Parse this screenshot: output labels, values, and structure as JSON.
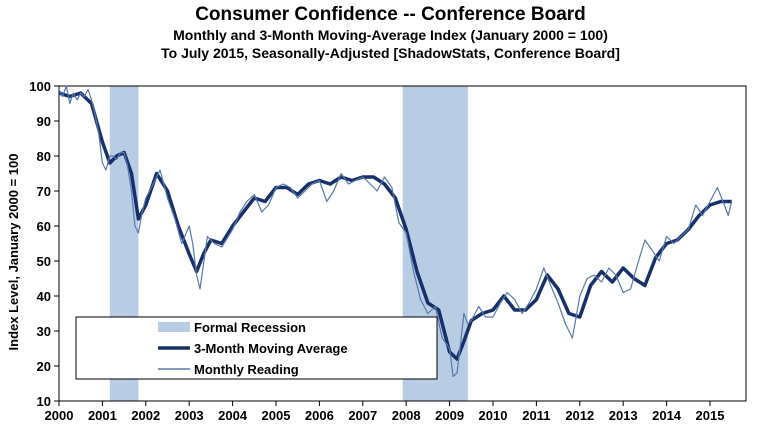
{
  "chart_data": {
    "type": "line",
    "title": "Consumer Confidence -- Conference Board",
    "subtitle1": "Monthly and 3-Month Moving-Average Index (January 2000 = 100)",
    "subtitle2": "To July 2015, Seasonally-Adjusted [ShadowStats, Conference Board]",
    "ylabel": "Index Level, January 2000 = 100",
    "xlabel": "",
    "ylim": [
      10,
      100
    ],
    "xlim": [
      2000.0,
      2015.83
    ],
    "yticks": [
      "10",
      "20",
      "30",
      "40",
      "50",
      "60",
      "70",
      "80",
      "90",
      "100"
    ],
    "xticks": [
      "2000",
      "2001",
      "2002",
      "2003",
      "2004",
      "2005",
      "2006",
      "2007",
      "2008",
      "2009",
      "2010",
      "2011",
      "2012",
      "2013",
      "2014",
      "2015"
    ],
    "grid": false,
    "legend_position": "bottom-left",
    "colors": {
      "recession": "#b8cce4",
      "moving_average": "#17306b",
      "monthly": "#5878a8"
    },
    "legend": [
      {
        "key": "recession",
        "label": "Formal Recession"
      },
      {
        "key": "moving_average",
        "label": "3-Month Moving Average"
      },
      {
        "key": "monthly",
        "label": "Monthly Reading"
      }
    ],
    "recessions": [
      {
        "start": 2001.17,
        "end": 2001.83
      },
      {
        "start": 2007.92,
        "end": 2009.42
      }
    ],
    "series": [
      {
        "name": "3-Month Moving Average",
        "x": [
          2000.0,
          2000.25,
          2000.5,
          2000.75,
          2001.0,
          2001.17,
          2001.33,
          2001.5,
          2001.67,
          2001.83,
          2002.0,
          2002.25,
          2002.5,
          2002.75,
          2003.0,
          2003.17,
          2003.33,
          2003.5,
          2003.75,
          2004.0,
          2004.25,
          2004.5,
          2004.75,
          2005.0,
          2005.25,
          2005.5,
          2005.75,
          2006.0,
          2006.25,
          2006.5,
          2006.75,
          2007.0,
          2007.25,
          2007.5,
          2007.75,
          2008.0,
          2008.25,
          2008.5,
          2008.75,
          2009.0,
          2009.17,
          2009.33,
          2009.5,
          2009.75,
          2010.0,
          2010.25,
          2010.5,
          2010.75,
          2011.0,
          2011.25,
          2011.5,
          2011.75,
          2012.0,
          2012.25,
          2012.5,
          2012.75,
          2013.0,
          2013.25,
          2013.5,
          2013.75,
          2014.0,
          2014.25,
          2014.5,
          2014.75,
          2015.0,
          2015.25,
          2015.5
        ],
        "values": [
          98,
          97,
          98,
          95,
          84,
          78,
          80,
          81,
          75,
          62,
          66,
          75,
          70,
          60,
          52,
          47,
          52,
          56,
          55,
          60,
          64,
          68,
          67,
          71,
          71,
          69,
          72,
          73,
          72,
          74,
          73,
          74,
          74,
          72,
          68,
          59,
          47,
          38,
          36,
          24,
          22,
          27,
          33,
          35,
          36,
          40,
          36,
          36,
          39,
          46,
          42,
          35,
          34,
          43,
          47,
          44,
          48,
          45,
          43,
          51,
          55,
          56,
          59,
          63,
          66,
          67,
          67
        ]
      },
      {
        "name": "Monthly Reading",
        "x": [
          2000.0,
          2000.08,
          2000.17,
          2000.25,
          2000.33,
          2000.42,
          2000.5,
          2000.58,
          2000.67,
          2000.75,
          2000.83,
          2000.92,
          2001.0,
          2001.08,
          2001.17,
          2001.25,
          2001.33,
          2001.42,
          2001.5,
          2001.58,
          2001.67,
          2001.75,
          2001.83,
          2001.92,
          2002.0,
          2002.17,
          2002.33,
          2002.5,
          2002.67,
          2002.83,
          2003.0,
          2003.08,
          2003.17,
          2003.25,
          2003.42,
          2003.58,
          2003.75,
          2004.0,
          2004.17,
          2004.33,
          2004.5,
          2004.67,
          2004.83,
          2005.0,
          2005.17,
          2005.33,
          2005.5,
          2005.67,
          2005.83,
          2006.0,
          2006.17,
          2006.33,
          2006.5,
          2006.67,
          2006.83,
          2007.0,
          2007.17,
          2007.33,
          2007.5,
          2007.67,
          2007.83,
          2008.0,
          2008.17,
          2008.33,
          2008.5,
          2008.67,
          2008.83,
          2009.0,
          2009.08,
          2009.17,
          2009.25,
          2009.33,
          2009.42,
          2009.5,
          2009.67,
          2009.83,
          2010.0,
          2010.17,
          2010.33,
          2010.5,
          2010.67,
          2010.83,
          2011.0,
          2011.17,
          2011.33,
          2011.5,
          2011.67,
          2011.83,
          2012.0,
          2012.17,
          2012.33,
          2012.5,
          2012.67,
          2012.83,
          2013.0,
          2013.17,
          2013.33,
          2013.5,
          2013.67,
          2013.83,
          2014.0,
          2014.17,
          2014.33,
          2014.5,
          2014.67,
          2014.83,
          2015.0,
          2015.17,
          2015.33,
          2015.42,
          2015.5
        ],
        "values": [
          99,
          97,
          100,
          95,
          98,
          96,
          98,
          97,
          99,
          96,
          92,
          86,
          78,
          76,
          80,
          80,
          79,
          81,
          81,
          77,
          70,
          60,
          58,
          64,
          68,
          72,
          76,
          68,
          62,
          55,
          60,
          55,
          46,
          42,
          57,
          55,
          54,
          59,
          64,
          67,
          69,
          64,
          66,
          71,
          72,
          71,
          68,
          70,
          72,
          73,
          67,
          70,
          75,
          72,
          73,
          74,
          72,
          70,
          74,
          71,
          61,
          58,
          47,
          39,
          35,
          37,
          28,
          25,
          17,
          18,
          26,
          35,
          32,
          33,
          37,
          34,
          34,
          38,
          41,
          39,
          35,
          38,
          42,
          48,
          43,
          38,
          32,
          28,
          40,
          45,
          46,
          44,
          48,
          46,
          41,
          42,
          49,
          56,
          53,
          50,
          57,
          55,
          57,
          59,
          66,
          63,
          67,
          71,
          66,
          63,
          67
        ]
      }
    ]
  }
}
